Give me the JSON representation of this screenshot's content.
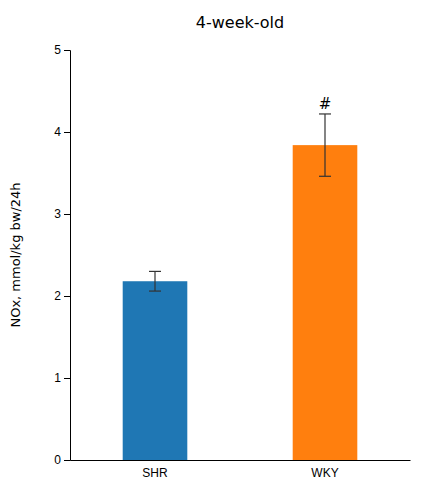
{
  "chart_data": {
    "type": "bar",
    "title": "4-week-old",
    "categories": [
      "SHR",
      "WKY"
    ],
    "values": [
      2.18,
      3.84
    ],
    "errors": [
      0.12,
      0.38
    ],
    "ylabel": "NOx, mmol/kg bw/24h",
    "ylim": [
      0,
      5
    ],
    "yticks": [
      0,
      1,
      2,
      3,
      4,
      5
    ],
    "grid": false,
    "annotations": [
      {
        "text": "#",
        "category": "WKY",
        "y": 4.26
      }
    ]
  }
}
